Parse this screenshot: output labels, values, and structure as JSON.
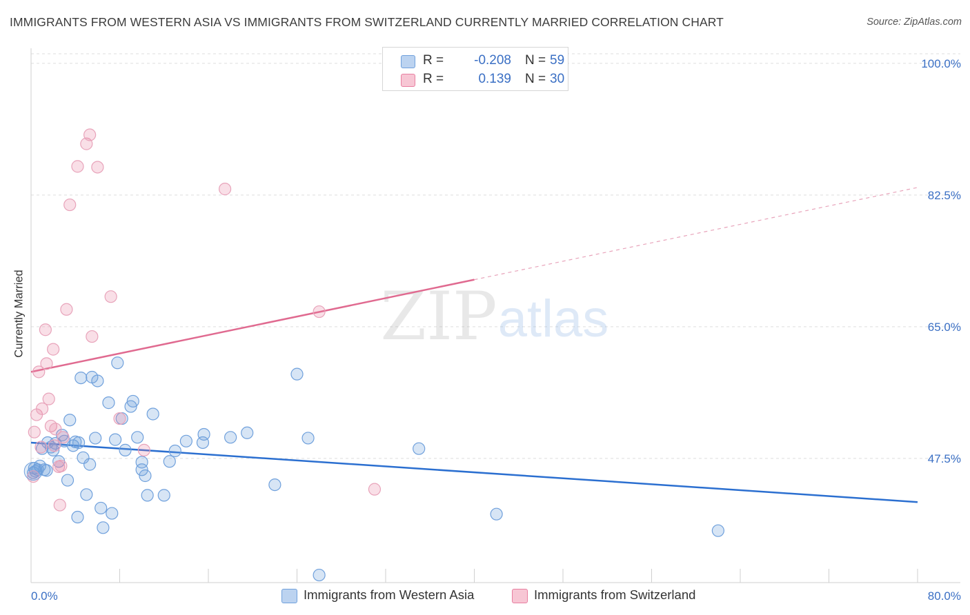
{
  "title": "IMMIGRANTS FROM WESTERN ASIA VS IMMIGRANTS FROM SWITZERLAND CURRENTLY MARRIED CORRELATION CHART",
  "source": "Source: ZipAtlas.com",
  "watermark": {
    "zip": "ZIP",
    "atlas": "atlas"
  },
  "legend_top": {
    "rows": [
      {
        "r_label": "R =",
        "r_value": "-0.208",
        "n_label": "N =",
        "n_value": "59",
        "color": "#6fa0dc"
      },
      {
        "r_label": "R =",
        "r_value": "0.139",
        "n_label": "N =",
        "n_value": "30",
        "color": "#e87ea0"
      }
    ]
  },
  "legend_bottom": [
    {
      "label": "Immigrants from Western Asia",
      "color": "#6fa0dc"
    },
    {
      "label": "Immigrants from Switzerland",
      "color": "#e87ea0"
    }
  ],
  "chart_data": {
    "type": "scatter",
    "title": "IMMIGRANTS FROM WESTERN ASIA VS IMMIGRANTS FROM SWITZERLAND CURRENTLY MARRIED CORRELATION CHART",
    "xlabel": "",
    "ylabel": "Currently Married",
    "xlim": [
      0,
      80
    ],
    "ylim": [
      31,
      102
    ],
    "x_tick_labels": [
      "0.0%",
      "80.0%"
    ],
    "y_ticks": [
      47.5,
      65.0,
      82.5,
      100.0
    ],
    "y_tick_labels": [
      "47.5%",
      "65.0%",
      "82.5%",
      "100.0%"
    ],
    "grid": true,
    "series": [
      {
        "name": "Immigrants from Western Asia",
        "color": "#6fa0dc",
        "trend": {
          "x": [
            0,
            80
          ],
          "y": [
            49.6,
            41.7
          ],
          "solid_to": 80
        },
        "points": [
          [
            0.3,
            46.2
          ],
          [
            0.4,
            45.8
          ],
          [
            0.6,
            46.0
          ],
          [
            0.8,
            46.5
          ],
          [
            1.0,
            48.8
          ],
          [
            1.2,
            46.0
          ],
          [
            1.5,
            49.6
          ],
          [
            1.8,
            49.0
          ],
          [
            2.0,
            48.6
          ],
          [
            2.2,
            49.5
          ],
          [
            2.5,
            47.1
          ],
          [
            2.8,
            50.6
          ],
          [
            3.0,
            49.8
          ],
          [
            3.3,
            44.6
          ],
          [
            3.5,
            52.6
          ],
          [
            3.8,
            49.2
          ],
          [
            4.0,
            49.7
          ],
          [
            4.3,
            49.6
          ],
          [
            4.5,
            58.2
          ],
          [
            4.7,
            47.6
          ],
          [
            5.0,
            42.7
          ],
          [
            5.3,
            46.7
          ],
          [
            5.5,
            58.3
          ],
          [
            5.8,
            50.2
          ],
          [
            6.0,
            57.8
          ],
          [
            6.3,
            40.9
          ],
          [
            6.5,
            38.3
          ],
          [
            7.0,
            54.9
          ],
          [
            7.3,
            40.2
          ],
          [
            7.6,
            50.0
          ],
          [
            7.8,
            60.2
          ],
          [
            8.2,
            52.8
          ],
          [
            8.5,
            48.6
          ],
          [
            9.0,
            54.4
          ],
          [
            9.2,
            55.1
          ],
          [
            9.6,
            50.3
          ],
          [
            10.0,
            46.0
          ],
          [
            10.3,
            45.2
          ],
          [
            10.5,
            42.6
          ],
          [
            10.0,
            47.0
          ],
          [
            11.0,
            53.4
          ],
          [
            12.0,
            42.6
          ],
          [
            12.5,
            47.1
          ],
          [
            13.0,
            48.5
          ],
          [
            14.0,
            49.8
          ],
          [
            15.5,
            49.6
          ],
          [
            15.6,
            50.7
          ],
          [
            18.0,
            50.3
          ],
          [
            19.5,
            50.9
          ],
          [
            22.0,
            44.0
          ],
          [
            24.0,
            58.7
          ],
          [
            25.0,
            50.2
          ],
          [
            26.0,
            32.0
          ],
          [
            35.0,
            48.8
          ],
          [
            42.0,
            40.1
          ],
          [
            62.0,
            37.9
          ],
          [
            0.2,
            45.6
          ],
          [
            1.4,
            45.9
          ],
          [
            4.2,
            39.7
          ]
        ]
      },
      {
        "name": "Immigrants from Switzerland",
        "color": "#e87ea0",
        "trend": {
          "x": [
            0,
            80
          ],
          "y": [
            59.0,
            83.5
          ],
          "solid_to": 40
        },
        "points": [
          [
            0.2,
            45.1
          ],
          [
            0.3,
            51.0
          ],
          [
            0.5,
            53.3
          ],
          [
            0.7,
            59.0
          ],
          [
            0.9,
            49.0
          ],
          [
            1.0,
            54.1
          ],
          [
            1.3,
            64.6
          ],
          [
            1.4,
            60.1
          ],
          [
            1.6,
            55.4
          ],
          [
            1.8,
            51.8
          ],
          [
            2.0,
            62.0
          ],
          [
            2.2,
            51.4
          ],
          [
            2.5,
            46.4
          ],
          [
            2.6,
            41.3
          ],
          [
            2.9,
            50.3
          ],
          [
            3.2,
            67.3
          ],
          [
            3.5,
            81.2
          ],
          [
            4.2,
            86.3
          ],
          [
            5.0,
            89.3
          ],
          [
            5.3,
            90.5
          ],
          [
            5.5,
            63.7
          ],
          [
            6.0,
            86.2
          ],
          [
            7.2,
            69.0
          ],
          [
            8.0,
            52.8
          ],
          [
            10.2,
            48.6
          ],
          [
            17.5,
            83.3
          ],
          [
            26.0,
            67.0
          ],
          [
            31.0,
            43.4
          ],
          [
            2.1,
            49.2
          ],
          [
            2.7,
            46.5
          ]
        ]
      }
    ]
  }
}
